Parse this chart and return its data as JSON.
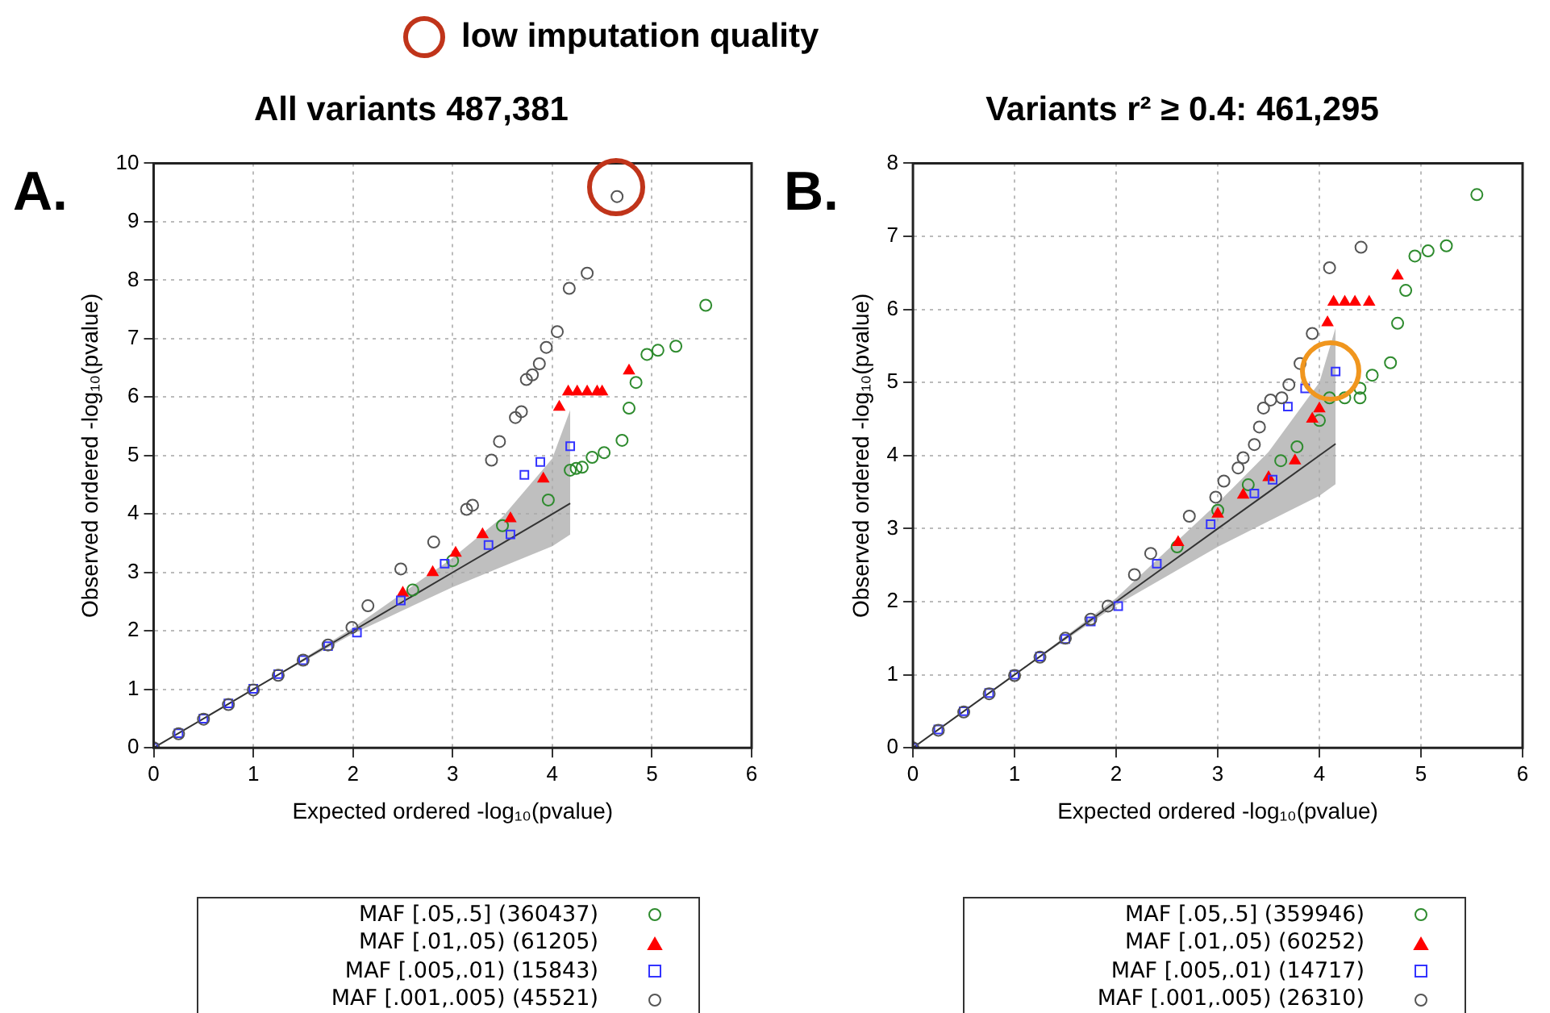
{
  "chart_data": [
    {
      "type": "scatter",
      "title": "All variants 487,381",
      "xlabel": "Expected ordered -log₁₀(pvalue)",
      "ylabel": "Observed ordered -log₁₀(pvalue)",
      "annotations": [
        "A.",
        "low imputation quality"
      ],
      "xlim": [
        0,
        6
      ],
      "xticks": [
        0,
        1,
        2,
        3,
        4,
        5,
        6
      ],
      "ylim": [
        0,
        10
      ],
      "yticks": [
        0,
        1,
        2,
        3,
        4,
        5,
        6,
        7,
        8,
        9,
        10
      ],
      "grid": true,
      "legend": "bottom",
      "series": [
        {
          "type": "line",
          "color": "#333333",
          "marker": "none",
          "x": [
            0,
            1,
            2,
            2.5,
            3,
            3.5,
            4,
            4.18
          ],
          "values": [
            0,
            1,
            2,
            2.5,
            3,
            3.5,
            4,
            4.18
          ],
          "lower": [
            0,
            1,
            1.95,
            2.35,
            2.75,
            3.1,
            3.45,
            3.65
          ],
          "upper": [
            0,
            1,
            2.05,
            2.65,
            3.25,
            3.95,
            4.95,
            5.78
          ]
        },
        {
          "name": "MAF [.05,.5] (360437)",
          "color": "#2e8b2e",
          "marker": "circle",
          "x": [
            2.6,
            3.0,
            3.5,
            3.96,
            4.18,
            4.24,
            4.3,
            4.4,
            4.52,
            4.7,
            4.77,
            4.84,
            4.95,
            5.06,
            5.24,
            5.54
          ],
          "values": [
            2.7,
            3.2,
            3.8,
            4.24,
            4.75,
            4.78,
            4.8,
            4.97,
            5.05,
            5.26,
            5.81,
            6.25,
            6.73,
            6.8,
            6.87,
            7.57
          ]
        },
        {
          "name": "MAF [.01,.05) (61205)",
          "color": "#ff0000",
          "marker": "triangle",
          "x": [
            2.5,
            2.8,
            3.03,
            3.3,
            3.58,
            3.91,
            4.07,
            4.16,
            4.25,
            4.35,
            4.45,
            4.5,
            4.77
          ],
          "values": [
            2.65,
            3.0,
            3.33,
            3.65,
            3.92,
            4.6,
            5.83,
            6.09,
            6.09,
            6.09,
            6.09,
            6.09,
            6.45
          ]
        },
        {
          "name": "MAF [.005,.01) (15843)",
          "color": "#3333ff",
          "marker": "square",
          "x": [
            0,
            0.25,
            0.5,
            0.75,
            1,
            1.25,
            1.5,
            1.75,
            2.04,
            2.48,
            2.92,
            3.36,
            3.58,
            3.72,
            3.88,
            4.18
          ],
          "values": [
            0,
            0.25,
            0.5,
            0.76,
            1.01,
            1.26,
            1.5,
            1.74,
            1.97,
            2.52,
            3.15,
            3.47,
            3.65,
            4.67,
            4.89,
            5.16
          ]
        },
        {
          "name": "MAF [.001,.005) (45521)",
          "color": "#555555",
          "marker": "circle",
          "x": [
            0,
            0.25,
            0.5,
            0.75,
            1,
            1.25,
            1.5,
            1.75,
            1.99,
            2.15,
            2.48,
            2.81,
            3.14,
            3.2,
            3.39,
            3.47,
            3.63,
            3.69,
            3.74,
            3.8,
            3.87,
            3.94,
            4.05,
            4.17,
            4.35,
            4.65
          ],
          "values": [
            0,
            0.24,
            0.49,
            0.74,
            0.99,
            1.24,
            1.5,
            1.76,
            2.06,
            2.43,
            3.06,
            3.52,
            4.08,
            4.15,
            4.92,
            5.24,
            5.65,
            5.75,
            6.3,
            6.38,
            6.57,
            6.85,
            7.12,
            7.86,
            8.12,
            9.43
          ]
        }
      ]
    },
    {
      "type": "scatter",
      "title": "Variants r² ≥ 0.4: 461,295",
      "xlabel": "Expected ordered -log₁₀(pvalue)",
      "ylabel": "Observed ordered -log₁₀(pvalue)",
      "annotations": [
        "B."
      ],
      "xlim": [
        0,
        6
      ],
      "xticks": [
        0,
        1,
        2,
        3,
        4,
        5,
        6
      ],
      "ylim": [
        0,
        8
      ],
      "yticks": [
        0,
        1,
        2,
        3,
        4,
        5,
        6,
        7,
        8
      ],
      "grid": true,
      "legend": "bottom",
      "series": [
        {
          "type": "line",
          "color": "#333333",
          "marker": "none",
          "x": [
            0,
            1,
            2,
            2.5,
            3,
            3.5,
            4,
            4.16
          ],
          "values": [
            0,
            1,
            2,
            2.5,
            3,
            3.5,
            4,
            4.16
          ],
          "lower": [
            0,
            1,
            1.95,
            2.35,
            2.75,
            3.1,
            3.45,
            3.61
          ],
          "upper": [
            0,
            1,
            2.05,
            2.7,
            3.35,
            4.05,
            5.0,
            5.75
          ]
        },
        {
          "name": "MAF [.05,.5] (359946)",
          "color": "#2e8b2e",
          "marker": "circle",
          "x": [
            2.6,
            3.0,
            3.3,
            3.62,
            3.78,
            4.0,
            4.1,
            4.25,
            4.4,
            4.4,
            4.52,
            4.7,
            4.77,
            4.85,
            4.94,
            5.07,
            5.25,
            5.55
          ],
          "values": [
            2.75,
            3.25,
            3.6,
            3.93,
            4.12,
            4.48,
            4.79,
            4.79,
            4.79,
            4.92,
            5.1,
            5.27,
            5.81,
            6.26,
            6.73,
            6.8,
            6.87,
            7.57
          ]
        },
        {
          "name": "MAF [.01,.05) (60252)",
          "color": "#ff0000",
          "marker": "triangle",
          "x": [
            2.61,
            3.0,
            3.25,
            3.5,
            3.76,
            3.93,
            4.0,
            4.08,
            4.14,
            4.25,
            4.35,
            4.49,
            4.77
          ],
          "values": [
            2.81,
            3.2,
            3.46,
            3.7,
            3.93,
            4.5,
            4.64,
            5.82,
            6.1,
            6.1,
            6.1,
            6.1,
            6.46
          ]
        },
        {
          "name": "MAF [.005,.01) (14717)",
          "color": "#3333ff",
          "marker": "square",
          "x": [
            0,
            0.25,
            0.5,
            0.75,
            1,
            1.25,
            1.5,
            1.75,
            2.02,
            2.4,
            2.93,
            3.36,
            3.54,
            3.69,
            3.86,
            4.16
          ],
          "values": [
            0,
            0.25,
            0.5,
            0.75,
            1.0,
            1.25,
            1.49,
            1.73,
            1.94,
            2.52,
            3.06,
            3.48,
            3.67,
            4.67,
            4.92,
            5.15
          ]
        },
        {
          "name": "MAF [.001,.005) (26310)",
          "color": "#555555",
          "marker": "circle",
          "x": [
            0,
            0.25,
            0.5,
            0.75,
            1,
            1.25,
            1.5,
            1.75,
            1.92,
            2.18,
            2.34,
            2.72,
            2.98,
            3.06,
            3.2,
            3.25,
            3.36,
            3.41,
            3.45,
            3.52,
            3.63,
            3.7,
            3.81,
            3.93,
            4.1,
            4.41
          ],
          "values": [
            0,
            0.24,
            0.49,
            0.74,
            0.99,
            1.24,
            1.5,
            1.76,
            1.94,
            2.37,
            2.66,
            3.17,
            3.43,
            3.65,
            3.83,
            3.97,
            4.15,
            4.39,
            4.65,
            4.76,
            4.79,
            4.97,
            5.26,
            5.67,
            6.57,
            6.85
          ]
        }
      ]
    }
  ]
}
